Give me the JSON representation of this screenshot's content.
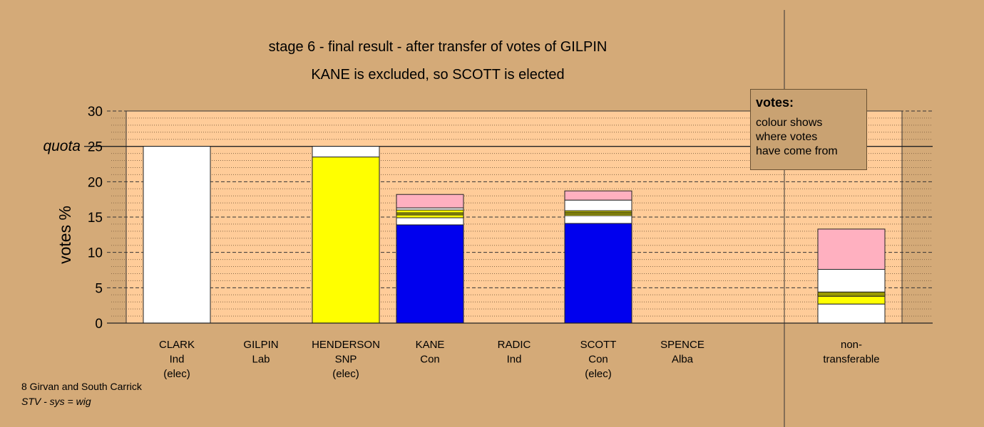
{
  "chart_data": {
    "type": "bar",
    "stacked": true,
    "title": "stage 6 - final result - after transfer of votes of GILPIN",
    "subtitle": "KANE is excluded, so SCOTT is elected",
    "ylabel": "votes %",
    "ylim": [
      0,
      30
    ],
    "yticks": [
      "0",
      "5",
      "10",
      "15",
      "20",
      "25",
      "30"
    ],
    "quota": {
      "value": 25,
      "label": "quota"
    },
    "grid": true,
    "candidates": [
      {
        "name": "CLARK",
        "party": "Ind",
        "status": "(elec)",
        "segments": [
          {
            "value": 25.0,
            "color": "#ffffff"
          }
        ]
      },
      {
        "name": "GILPIN",
        "party": "Lab",
        "status": "",
        "segments": []
      },
      {
        "name": "HENDERSON",
        "party": "SNP",
        "status": "(elec)",
        "segments": [
          {
            "value": 23.5,
            "color": "#ffff00"
          },
          {
            "value": 1.5,
            "color": "#ffffff"
          }
        ]
      },
      {
        "name": "KANE",
        "party": "Con",
        "status": "",
        "segments": [
          {
            "value": 13.9,
            "color": "#0000ee"
          },
          {
            "value": 1.0,
            "color": "#ffffff"
          },
          {
            "value": 0.4,
            "color": "#ffff00"
          },
          {
            "value": 0.3,
            "color": "#999900"
          },
          {
            "value": 0.4,
            "color": "#ffff00"
          },
          {
            "value": 0.3,
            "color": "#ffffff"
          },
          {
            "value": 1.9,
            "color": "#ffb0c0"
          }
        ]
      },
      {
        "name": "RADIC",
        "party": "Ind",
        "status": "",
        "segments": []
      },
      {
        "name": "SCOTT",
        "party": "Con",
        "status": "(elec)",
        "segments": [
          {
            "value": 14.1,
            "color": "#0000ee"
          },
          {
            "value": 1.1,
            "color": "#ffffff"
          },
          {
            "value": 0.2,
            "color": "#ffff00"
          },
          {
            "value": 0.3,
            "color": "#999900"
          },
          {
            "value": 0.2,
            "color": "#ffff00"
          },
          {
            "value": 1.5,
            "color": "#ffffff"
          },
          {
            "value": 1.3,
            "color": "#ffb0c0"
          }
        ]
      },
      {
        "name": "SPENCE",
        "party": "Alba",
        "status": "",
        "segments": []
      },
      {
        "name": "non-",
        "party": "transferable",
        "status": "",
        "segments": [
          {
            "value": 2.7,
            "color": "#ffffff"
          },
          {
            "value": 1.1,
            "color": "#ffff00"
          },
          {
            "value": 0.6,
            "color": "#999900"
          },
          {
            "value": 3.2,
            "color": "#ffffff"
          },
          {
            "value": 5.7,
            "color": "#ffb0c0"
          }
        ]
      }
    ]
  },
  "legend": {
    "title": "votes:",
    "lines": [
      "colour shows",
      "where votes",
      "have come from"
    ]
  },
  "footer": {
    "constituency": "8 Girvan and South Carrick",
    "system": "STV - sys = wig"
  }
}
